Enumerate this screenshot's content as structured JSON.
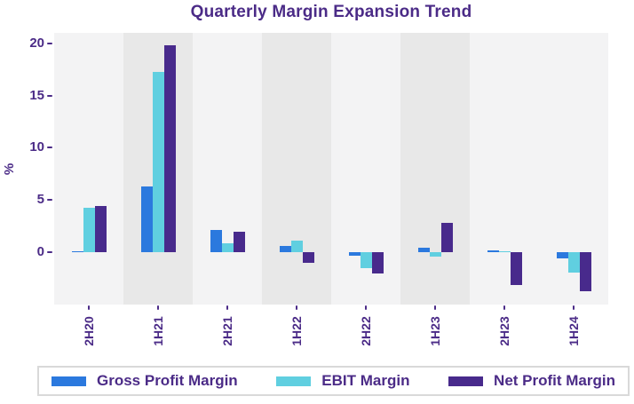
{
  "chart_data": {
    "type": "bar",
    "title": "Quarterly Margin Expansion Trend",
    "categories": [
      "2H20",
      "1H21",
      "2H21",
      "1H22",
      "2H22",
      "1H23",
      "2H23",
      "1H24"
    ],
    "series": [
      {
        "name": "Gross Profit Margin",
        "color": "#2b79de",
        "values": [
          0.1,
          6.3,
          2.1,
          0.6,
          -0.3,
          0.4,
          0.2,
          -0.6
        ]
      },
      {
        "name": "EBIT Margin",
        "color": "#60cfe0",
        "values": [
          4.3,
          17.3,
          0.9,
          1.1,
          -1.5,
          -0.4,
          0.1,
          -1.9
        ]
      },
      {
        "name": "Net Profit Margin",
        "color": "#482a8c",
        "values": [
          4.4,
          19.8,
          2.0,
          -1.0,
          -2.0,
          2.8,
          -3.1,
          -3.7
        ]
      }
    ],
    "xlabel": "",
    "ylabel": "%",
    "yticks": [
      0,
      5,
      10,
      15,
      20
    ],
    "ylim": [
      -5,
      21
    ],
    "grid": false,
    "legend_position": "bottom",
    "banded_category_indices": [
      1,
      3,
      5
    ],
    "band_color": "#e8e8e8",
    "plot_background_color": "#f3f3f4",
    "text_color": "#4b2b87"
  }
}
